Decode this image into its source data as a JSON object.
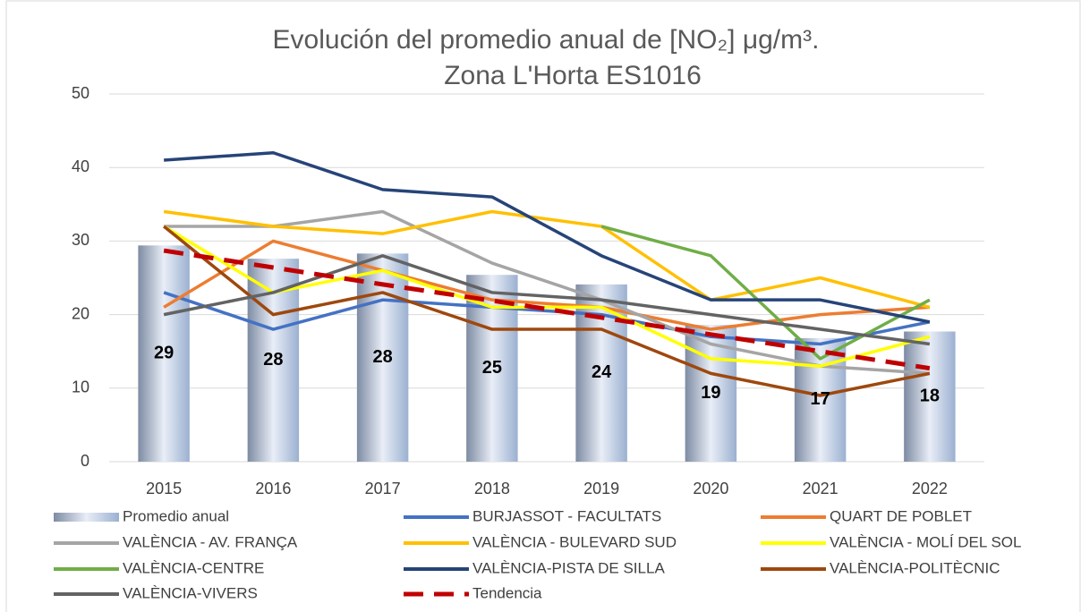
{
  "chart_data": {
    "type": "combo",
    "title_lines": [
      "Evolución del promedio anual de [NO₂] μg/m³.",
      "Zona L'Horta ES1016"
    ],
    "categories": [
      "2015",
      "2016",
      "2017",
      "2018",
      "2019",
      "2020",
      "2021",
      "2022"
    ],
    "ylim": [
      0,
      50
    ],
    "yticks": [
      0,
      10,
      20,
      30,
      40,
      50
    ],
    "grid": true,
    "bars": {
      "name": "Promedio anual",
      "color": "#8fa6c8",
      "values": [
        29.4,
        27.6,
        28.3,
        25.4,
        24.1,
        18.6,
        16.8,
        17.7
      ],
      "value_labels": [
        "29",
        "28",
        "28",
        "25",
        "24",
        "19",
        "17",
        "18"
      ]
    },
    "series": [
      {
        "name": "BURJASSOT - FACULTATS",
        "color": "#4472c4",
        "values": [
          23,
          18,
          22,
          21,
          20,
          17,
          16,
          19
        ]
      },
      {
        "name": "QUART DE POBLET",
        "color": "#ed7d31",
        "values": [
          21,
          30,
          26,
          22,
          21,
          18,
          20,
          21
        ]
      },
      {
        "name": "VALÈNCIA - AV. FRANÇA",
        "color": "#a5a5a5",
        "values": [
          32,
          32,
          34,
          27,
          22,
          16,
          13,
          12
        ]
      },
      {
        "name": "VALÈNCIA - BULEVARD SUD",
        "color": "#ffc000",
        "values": [
          34,
          32,
          31,
          34,
          32,
          22,
          25,
          21
        ]
      },
      {
        "name": "VALÈNCIA - MOLÍ DEL SOL",
        "color": "#ffff00",
        "values": [
          32,
          23,
          26,
          21,
          21,
          14,
          13,
          17
        ]
      },
      {
        "name": "VALÈNCIA-CENTRE",
        "color": "#70ad47",
        "values": [
          null,
          null,
          null,
          null,
          32,
          28,
          14,
          22
        ]
      },
      {
        "name": "VALÈNCIA-PISTA DE SILLA",
        "color": "#264478",
        "values": [
          41,
          42,
          37,
          36,
          28,
          22,
          22,
          19
        ]
      },
      {
        "name": "VALÈNCIA-POLITÈCNIC",
        "color": "#9e480e",
        "values": [
          32,
          20,
          23,
          18,
          18,
          12,
          9,
          12
        ]
      },
      {
        "name": "VALÈNCIA-VIVERS",
        "color": "#636363",
        "values": [
          20,
          23,
          28,
          23,
          22,
          20,
          18,
          16
        ]
      },
      {
        "name": "Tendencia",
        "color": "#c00000",
        "dashed": true,
        "values": [
          28.7,
          26.4,
          24.1,
          21.9,
          19.6,
          17.3,
          15.0,
          12.7
        ]
      }
    ],
    "legend": "bottom"
  }
}
